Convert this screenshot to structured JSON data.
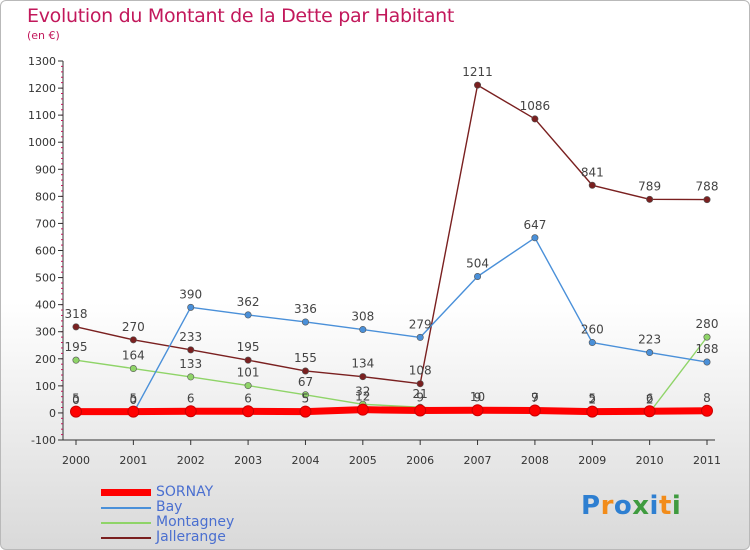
{
  "title": "Evolution du Montant de la Dette par Habitant",
  "subtitle": "(en €)",
  "logo_text": "Proxiti",
  "chart_data": {
    "type": "line",
    "title": "Evolution du Montant de la Dette par Habitant",
    "subtitle": "(en €)",
    "x": [
      "2000",
      "2001",
      "2002",
      "2003",
      "2004",
      "2005",
      "2006",
      "2007",
      "2008",
      "2009",
      "2010",
      "2011"
    ],
    "ylim": [
      -100,
      1300
    ],
    "yticks": [
      -100,
      0,
      100,
      200,
      300,
      400,
      500,
      600,
      700,
      800,
      900,
      1000,
      1100,
      1200,
      1300
    ],
    "grid": false,
    "legend_position": "bottom-left",
    "series": [
      {
        "name": "SORNAY",
        "color": "#ff0000",
        "values": [
          5,
          5,
          6,
          6,
          5,
          12,
          9,
          10,
          9,
          5,
          6,
          8
        ],
        "labels": [
          "5",
          "5",
          "6",
          "6",
          "5",
          "12",
          "9",
          "10",
          "9",
          "5",
          "6",
          "8"
        ]
      },
      {
        "name": "Bay",
        "color": "#4a90d9",
        "values": [
          0,
          0,
          390,
          362,
          336,
          308,
          279,
          504,
          647,
          260,
          223,
          188
        ],
        "labels": [
          "0",
          "0",
          "390",
          "362",
          "336",
          "308",
          "279",
          "504",
          "647",
          "260",
          "223",
          "188"
        ]
      },
      {
        "name": "Montagney",
        "color": "#8fd468",
        "values": [
          195,
          164,
          133,
          101,
          67,
          32,
          21,
          9,
          7,
          2,
          2,
          280
        ],
        "labels": [
          "195",
          "164",
          "133",
          "101",
          "67",
          "32",
          "21",
          "9",
          "7",
          "2",
          "2",
          "280"
        ]
      },
      {
        "name": "Jallerange",
        "color": "#7a2020",
        "values": [
          318,
          270,
          233,
          195,
          155,
          134,
          108,
          1211,
          1086,
          841,
          789,
          788
        ],
        "labels": [
          "318",
          "270",
          "233",
          "195",
          "155",
          "134",
          "108",
          "1211",
          "1086",
          "841",
          "789",
          "788"
        ]
      }
    ]
  }
}
